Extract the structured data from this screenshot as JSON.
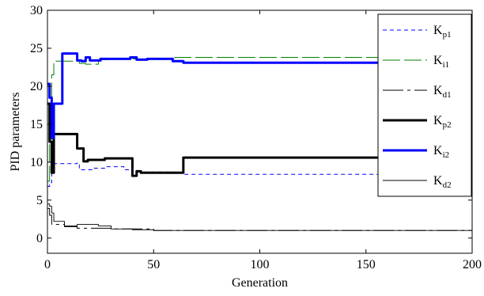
{
  "chart_data": {
    "type": "line",
    "xlabel": "Generation",
    "ylabel": "PID parameters",
    "xlim": [
      0,
      200
    ],
    "ylim": [
      -2,
      30
    ],
    "xticks": [
      0,
      50,
      100,
      150,
      200
    ],
    "yticks": [
      0,
      5,
      10,
      15,
      20,
      25,
      30
    ],
    "xtick_labels": [
      "0",
      "50",
      "100",
      "150",
      "200"
    ],
    "ytick_labels": [
      "0",
      "5",
      "10",
      "15",
      "20",
      "25",
      "30"
    ],
    "grid": false,
    "legend_position": "top-right",
    "series": [
      {
        "name": "Kp1",
        "base": "K",
        "sub": "p1",
        "color": "#0000ff",
        "dash": "5,4",
        "width": 1,
        "points": [
          [
            0,
            6.8
          ],
          [
            1,
            6.8
          ],
          [
            1,
            7.3
          ],
          [
            2,
            7.3
          ],
          [
            2,
            9.8
          ],
          [
            14,
            9.8
          ],
          [
            14,
            9.9
          ],
          [
            15,
            9.9
          ],
          [
            15,
            9.0
          ],
          [
            22,
            9.0
          ],
          [
            22,
            9.2
          ],
          [
            27,
            9.2
          ],
          [
            27,
            9.4
          ],
          [
            36,
            9.4
          ],
          [
            36,
            9.0
          ],
          [
            40,
            9.0
          ],
          [
            40,
            8.7
          ],
          [
            60,
            8.7
          ],
          [
            60,
            8.6
          ],
          [
            64,
            8.6
          ],
          [
            64,
            8.4
          ],
          [
            200,
            8.4
          ]
        ]
      },
      {
        "name": "Ki1",
        "base": "K",
        "sub": "i1",
        "color": "#008000",
        "dash": "22,5",
        "width": 1,
        "points": [
          [
            0,
            7.5
          ],
          [
            1,
            7.5
          ],
          [
            1,
            13.0
          ],
          [
            2,
            13.0
          ],
          [
            2,
            21.5
          ],
          [
            3,
            21.5
          ],
          [
            3,
            23.3
          ],
          [
            15,
            23.3
          ],
          [
            15,
            23.0
          ],
          [
            18,
            23.0
          ],
          [
            18,
            22.9
          ],
          [
            24,
            22.9
          ],
          [
            24,
            23.5
          ],
          [
            30,
            23.5
          ],
          [
            30,
            23.6
          ],
          [
            60,
            23.6
          ],
          [
            60,
            23.8
          ],
          [
            200,
            23.8
          ]
        ]
      },
      {
        "name": "Kd1",
        "base": "K",
        "sub": "d1",
        "color": "#000000",
        "dash": "26,5,4,5",
        "width": 1,
        "points": [
          [
            0,
            3.9
          ],
          [
            1,
            3.9
          ],
          [
            1,
            3.0
          ],
          [
            2,
            3.0
          ],
          [
            2,
            1.8
          ],
          [
            8,
            1.8
          ],
          [
            8,
            1.5
          ],
          [
            14,
            1.5
          ],
          [
            14,
            1.3
          ],
          [
            30,
            1.3
          ],
          [
            30,
            1.2
          ],
          [
            50,
            1.2
          ],
          [
            50,
            1.0
          ],
          [
            200,
            1.0
          ]
        ]
      },
      {
        "name": "Kp2",
        "base": "K",
        "sub": "p2",
        "color": "#000000",
        "dash": "",
        "width": 3,
        "points": [
          [
            0,
            17.7
          ],
          [
            1,
            17.7
          ],
          [
            1,
            12.7
          ],
          [
            2,
            12.7
          ],
          [
            2,
            8.6
          ],
          [
            3,
            8.6
          ],
          [
            3,
            13.7
          ],
          [
            14,
            13.7
          ],
          [
            14,
            11.8
          ],
          [
            17,
            11.8
          ],
          [
            17,
            10.1
          ],
          [
            19,
            10.1
          ],
          [
            19,
            10.3
          ],
          [
            27,
            10.3
          ],
          [
            27,
            10.5
          ],
          [
            40,
            10.5
          ],
          [
            40,
            8.2
          ],
          [
            42,
            8.2
          ],
          [
            42,
            8.8
          ],
          [
            44,
            8.8
          ],
          [
            44,
            8.6
          ],
          [
            64,
            8.6
          ],
          [
            64,
            10.6
          ],
          [
            200,
            10.6
          ]
        ]
      },
      {
        "name": "Ki2",
        "base": "K",
        "sub": "i2",
        "color": "#0000ff",
        "dash": "",
        "width": 3,
        "points": [
          [
            0,
            20.3
          ],
          [
            1,
            20.3
          ],
          [
            1,
            18.5
          ],
          [
            2,
            18.5
          ],
          [
            2,
            13.2
          ],
          [
            3,
            13.2
          ],
          [
            3,
            17.7
          ],
          [
            7,
            17.7
          ],
          [
            7,
            24.3
          ],
          [
            14,
            24.3
          ],
          [
            14,
            23.4
          ],
          [
            16,
            23.4
          ],
          [
            16,
            23.3
          ],
          [
            18,
            23.3
          ],
          [
            18,
            23.8
          ],
          [
            20,
            23.8
          ],
          [
            20,
            23.4
          ],
          [
            25,
            23.4
          ],
          [
            25,
            23.6
          ],
          [
            39,
            23.6
          ],
          [
            39,
            23.8
          ],
          [
            42,
            23.8
          ],
          [
            42,
            23.5
          ],
          [
            47,
            23.5
          ],
          [
            47,
            23.6
          ],
          [
            59,
            23.6
          ],
          [
            59,
            23.3
          ],
          [
            64,
            23.3
          ],
          [
            64,
            23.1
          ],
          [
            200,
            23.1
          ]
        ]
      },
      {
        "name": "Kd2",
        "base": "K",
        "sub": "d2",
        "color": "#000000",
        "dash": "",
        "width": 0.9,
        "points": [
          [
            0,
            4.5
          ],
          [
            1,
            4.5
          ],
          [
            1,
            4.2
          ],
          [
            2,
            4.2
          ],
          [
            2,
            3.3
          ],
          [
            3,
            3.3
          ],
          [
            3,
            2.2
          ],
          [
            8,
            2.2
          ],
          [
            8,
            1.6
          ],
          [
            14,
            1.6
          ],
          [
            14,
            1.8
          ],
          [
            24,
            1.8
          ],
          [
            24,
            1.6
          ],
          [
            30,
            1.6
          ],
          [
            30,
            1.2
          ],
          [
            40,
            1.2
          ],
          [
            40,
            1.1
          ],
          [
            50,
            1.1
          ],
          [
            50,
            1.0
          ],
          [
            200,
            1.0
          ]
        ]
      }
    ]
  }
}
